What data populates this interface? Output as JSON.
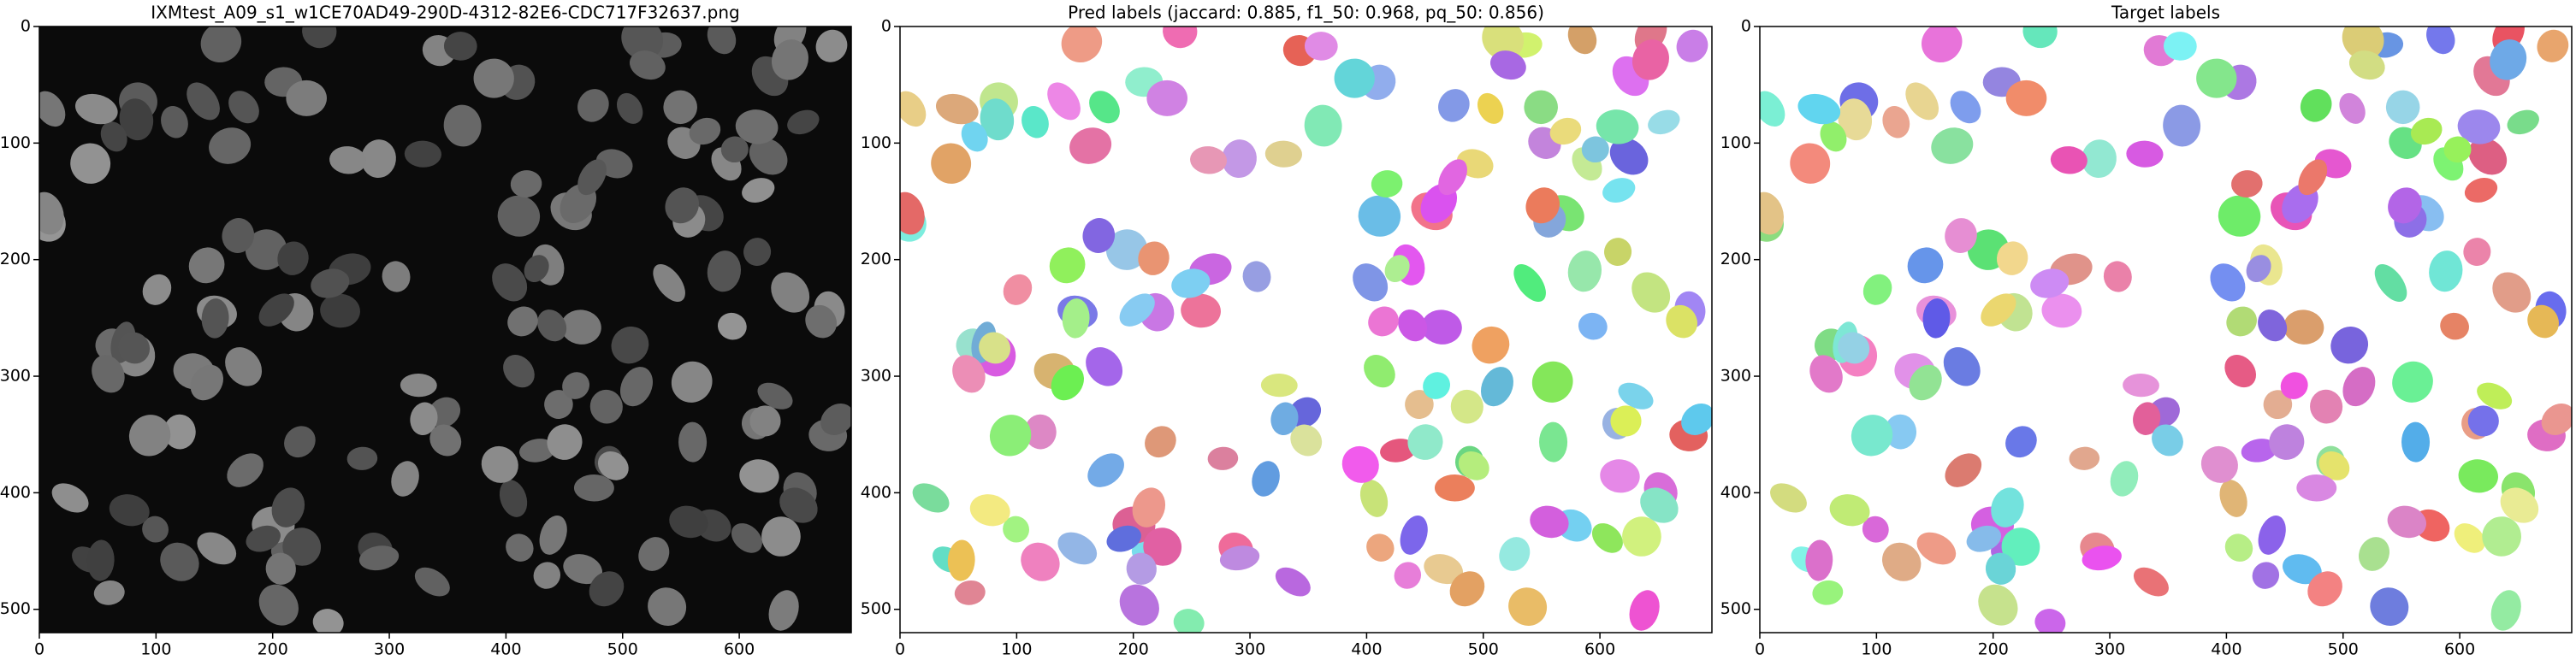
{
  "chart_data": [
    {
      "type": "image",
      "title": "IXMtest_A09_s1_w1CE70AD49-290D-4312-82E6-CDC717F32637.png",
      "style": "grayscale",
      "xlim": [
        0,
        696
      ],
      "ylim": [
        0,
        520
      ],
      "xticks": [
        0,
        100,
        200,
        300,
        400,
        500,
        600
      ],
      "yticks": [
        0,
        100,
        200,
        300,
        400,
        500
      ]
    },
    {
      "type": "image",
      "title": "Pred labels (jaccard: 0.885, f1_50: 0.968, pq_50: 0.856)",
      "style": "labels",
      "xlim": [
        0,
        696
      ],
      "ylim": [
        0,
        520
      ],
      "xticks": [
        0,
        100,
        200,
        300,
        400,
        500,
        600
      ],
      "yticks": [
        0,
        100,
        200,
        300,
        400,
        500
      ]
    },
    {
      "type": "image",
      "title": "Target labels",
      "style": "labels",
      "xlim": [
        0,
        696
      ],
      "ylim": [
        0,
        520
      ],
      "xticks": [
        0,
        100,
        200,
        300,
        400,
        500,
        600
      ],
      "yticks": [
        0,
        100,
        200,
        300,
        400,
        500
      ]
    }
  ]
}
